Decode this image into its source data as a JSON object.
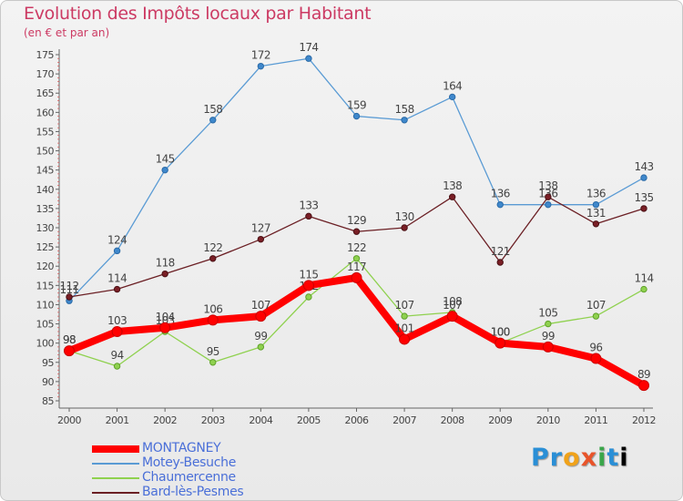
{
  "chart_data": {
    "type": "line",
    "title": "Evolution des Impôts locaux par Habitant",
    "subtitle": "(en € et par an)",
    "xlabel": "",
    "ylabel": "",
    "categories": [
      "2000",
      "2001",
      "2002",
      "2003",
      "2004",
      "2005",
      "2006",
      "2007",
      "2008",
      "2009",
      "2010",
      "2011",
      "2012"
    ],
    "ylim": [
      85,
      175
    ],
    "yticks": [
      85,
      90,
      95,
      100,
      105,
      110,
      115,
      120,
      125,
      130,
      135,
      140,
      145,
      150,
      155,
      160,
      165,
      170,
      175
    ],
    "grid": false,
    "legend_position": "bottom-left",
    "series": [
      {
        "name": "Motey-Besuche",
        "color": "#5a9bd4",
        "values": [
          111,
          124,
          145,
          158,
          172,
          174,
          159,
          158,
          164,
          136,
          136,
          136,
          143
        ]
      },
      {
        "name": "Bard-lès-Pesmes",
        "color": "#6b1f24",
        "values": [
          112,
          114,
          118,
          122,
          127,
          133,
          129,
          130,
          138,
          121,
          138,
          131,
          135
        ]
      },
      {
        "name": "Chaumercenne",
        "color": "#8fd14f",
        "values": [
          98,
          94,
          103,
          95,
          99,
          112,
          122,
          107,
          108,
          100,
          105,
          107,
          114
        ]
      },
      {
        "name": "MONTAGNEY",
        "color": "#ff0000",
        "values": [
          98,
          103,
          104,
          106,
          107,
          115,
          117,
          101,
          107,
          100,
          99,
          96,
          89
        ]
      }
    ],
    "legend": [
      "MONTAGNEY",
      "Motey-Besuche",
      "Chaumercenne",
      "Bard-lès-Pesmes"
    ]
  },
  "logo": {
    "letters": [
      "P",
      "r",
      "o",
      "x",
      "i",
      "t",
      "i"
    ]
  },
  "colors": {
    "title": "#cc3a63",
    "axis": "#555555",
    "legend_text": "#4a6fd8"
  }
}
